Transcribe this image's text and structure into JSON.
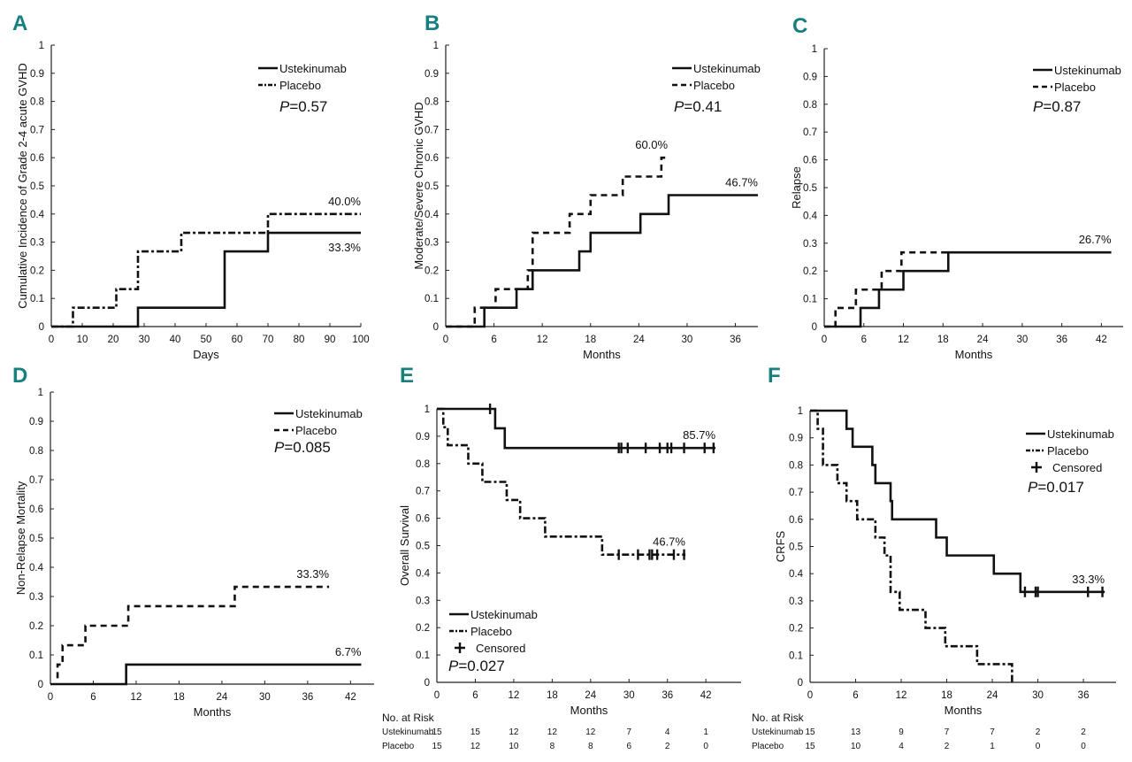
{
  "chart_data": [
    {
      "id": "A",
      "type": "line",
      "panel_label": "A",
      "ylabel": "Cumulative Incidence of Grade 2-4 acute GVHD",
      "xlabel": "Days",
      "xlim": [
        0,
        100
      ],
      "ylim": [
        0,
        1
      ],
      "xticks": [
        0,
        10,
        20,
        30,
        40,
        50,
        60,
        70,
        80,
        90,
        100
      ],
      "yticks": [
        0,
        0.1,
        0.2,
        0.3,
        0.4,
        0.5,
        0.6,
        0.7,
        0.8,
        0.9,
        1
      ],
      "legend": [
        "Ustekinumab",
        "Placebo"
      ],
      "legend_position": "top-right",
      "p_value": "=0.57",
      "series": [
        {
          "name": "Ustekinumab",
          "style": "solid",
          "step": true,
          "start": 0,
          "x": [
            0,
            28,
            56,
            70,
            100
          ],
          "y": [
            0,
            0.067,
            0.267,
            0.333,
            0.333
          ],
          "end_label": "33.3%",
          "label_pos": "below"
        },
        {
          "name": "Placebo",
          "style": "dashdot",
          "step": true,
          "start": 0,
          "x": [
            0,
            7,
            21,
            28,
            42,
            70,
            100
          ],
          "y": [
            0,
            0.067,
            0.133,
            0.267,
            0.333,
            0.4,
            0.4
          ],
          "end_label": "40.0%",
          "label_pos": "above"
        }
      ]
    },
    {
      "id": "B",
      "type": "line",
      "panel_label": "B",
      "ylabel": "Moderate/Severe Chronic GVHD",
      "xlabel": "Months",
      "xlim": [
        0,
        38.8
      ],
      "ylim": [
        0,
        1
      ],
      "xticks": [
        0,
        6,
        12,
        18,
        24,
        30,
        36
      ],
      "yticks": [
        0,
        0.1,
        0.2,
        0.3,
        0.4,
        0.5,
        0.6,
        0.7,
        0.8,
        0.9,
        1
      ],
      "legend": [
        "Ustekinumab",
        "Placebo"
      ],
      "legend_position": "top-right",
      "p_value": "=0.41",
      "series": [
        {
          "name": "Ustekinumab",
          "style": "solid",
          "step": true,
          "x": [
            0,
            4.8,
            8.8,
            10.8,
            16.6,
            18,
            24.2,
            27.7,
            38.8
          ],
          "y": [
            0,
            0.067,
            0.133,
            0.2,
            0.267,
            0.333,
            0.4,
            0.467,
            0.467
          ],
          "end_label": "46.7%",
          "label_pos": "above"
        },
        {
          "name": "Placebo",
          "style": "dash",
          "step": true,
          "x": [
            0,
            3.6,
            6.2,
            10.2,
            10.8,
            15.4,
            18,
            22,
            26.8,
            27.6
          ],
          "y": [
            0,
            0.067,
            0.133,
            0.2,
            0.333,
            0.4,
            0.467,
            0.533,
            0.6,
            0.6
          ],
          "end_label": "60.0%",
          "label_pos": "above"
        }
      ]
    },
    {
      "id": "C",
      "type": "line",
      "panel_label": "C",
      "ylabel": "Relapse",
      "xlabel": "Months",
      "xlim": [
        0,
        45.3
      ],
      "ylim": [
        0,
        1
      ],
      "xticks": [
        0,
        6,
        12,
        18,
        24,
        30,
        36,
        42
      ],
      "yticks": [
        0,
        0.1,
        0.2,
        0.3,
        0.4,
        0.5,
        0.6,
        0.7,
        0.8,
        0.9,
        1
      ],
      "legend": [
        "Ustekinumab",
        "Placebo"
      ],
      "legend_position": "top-right",
      "p_value": "=0.87",
      "series": [
        {
          "name": "Ustekinumab",
          "style": "solid",
          "step": true,
          "x": [
            0,
            5.5,
            8.3,
            12,
            18.8,
            43.5
          ],
          "y": [
            0,
            0.067,
            0.133,
            0.2,
            0.267,
            0.267
          ],
          "end_label": "26.7%",
          "label_pos": "above"
        },
        {
          "name": "Placebo",
          "style": "dash",
          "step": true,
          "x": [
            0,
            1.7,
            4.8,
            8.7,
            11.7,
            18.8
          ],
          "y": [
            0,
            0.067,
            0.133,
            0.2,
            0.267,
            0.267
          ],
          "end_label": "",
          "label_pos": "above"
        }
      ]
    },
    {
      "id": "D",
      "type": "line",
      "panel_label": "D",
      "ylabel": "Non-Relapse Mortality",
      "xlabel": "Months",
      "xlim": [
        0,
        45.3
      ],
      "ylim": [
        0,
        1
      ],
      "xticks": [
        0,
        6,
        12,
        18,
        24,
        30,
        36,
        42
      ],
      "yticks": [
        0,
        0.1,
        0.2,
        0.3,
        0.4,
        0.5,
        0.6,
        0.7,
        0.8,
        0.9,
        1
      ],
      "legend": [
        "Ustekinumab",
        "Placebo"
      ],
      "legend_position": "top-right",
      "p_value": "=0.085",
      "series": [
        {
          "name": "Ustekinumab",
          "style": "solid",
          "step": true,
          "x": [
            0,
            10.6,
            43.5
          ],
          "y": [
            0,
            0.067,
            0.067
          ],
          "end_label": "6.7%",
          "label_pos": "above"
        },
        {
          "name": "Placebo",
          "style": "dash",
          "step": true,
          "x": [
            1,
            1.7,
            4.9,
            10.9,
            25.8,
            39
          ],
          "y": [
            0.067,
            0.133,
            0.2,
            0.267,
            0.333,
            0.333
          ],
          "start_y": 0.02,
          "end_label": "33.3%",
          "label_pos": "above"
        }
      ]
    },
    {
      "id": "E",
      "type": "line",
      "panel_label": "E",
      "ylabel": "Overall Survival",
      "xlabel": "Months",
      "xlim": [
        0,
        47.5
      ],
      "ylim": [
        0,
        1
      ],
      "xticks": [
        0,
        6,
        12,
        18,
        24,
        30,
        36,
        42
      ],
      "yticks": [
        0,
        0.1,
        0.2,
        0.3,
        0.4,
        0.5,
        0.6,
        0.7,
        0.8,
        0.9,
        1
      ],
      "legend": [
        "Ustekinumab",
        "Placebo",
        "Censored"
      ],
      "legend_position": "bottom-left",
      "p_value": "=0.027",
      "series": [
        {
          "name": "Ustekinumab",
          "style": "solid",
          "step": true,
          "x": [
            0,
            9.1,
            10.6,
            43.5
          ],
          "y": [
            1,
            0.929,
            0.857,
            0.857
          ],
          "censored": [
            8.3,
            28.4,
            28.8,
            29.8,
            32.6,
            34.8,
            36,
            36.6,
            38.6,
            41.8,
            43.2
          ],
          "end_label": "85.7%",
          "label_pos": "above"
        },
        {
          "name": "Placebo",
          "style": "dashdot",
          "step": true,
          "x": [
            0,
            1,
            1.7,
            4.9,
            7.1,
            10.9,
            13,
            16.9,
            25.8,
            38.8
          ],
          "y": [
            1,
            0.933,
            0.867,
            0.8,
            0.733,
            0.667,
            0.6,
            0.533,
            0.467,
            0.467
          ],
          "censored": [
            28.4,
            31.4,
            33.2,
            33.6,
            34.4,
            37,
            38.6
          ],
          "end_label": "46.7%",
          "label_pos": "above"
        }
      ],
      "risk_table": {
        "title": "No. at Risk",
        "times": [
          0,
          6,
          12,
          18,
          24,
          30,
          36,
          42
        ],
        "rows": [
          {
            "name": "Ustekinumab",
            "values": [
              15,
              15,
              12,
              12,
              12,
              7,
              4,
              1
            ]
          },
          {
            "name": "Placebo",
            "values": [
              15,
              12,
              10,
              8,
              8,
              6,
              2,
              0
            ]
          }
        ]
      }
    },
    {
      "id": "F",
      "type": "line",
      "panel_label": "F",
      "ylabel": "CRFS",
      "xlabel": "Months",
      "xlim": [
        0,
        40.3
      ],
      "ylim": [
        0,
        1
      ],
      "xticks": [
        0,
        6,
        12,
        18,
        24,
        30,
        36
      ],
      "yticks": [
        0,
        0.1,
        0.2,
        0.3,
        0.4,
        0.5,
        0.6,
        0.7,
        0.8,
        0.9,
        1
      ],
      "legend": [
        "Ustekinumab",
        "Placebo",
        "Censored"
      ],
      "legend_position": "top-right",
      "p_value": "=0.017",
      "series": [
        {
          "name": "Ustekinumab",
          "style": "solid",
          "step": true,
          "x": [
            0,
            4.8,
            5.6,
            8.2,
            8.6,
            10.6,
            10.8,
            16.6,
            18,
            24.2,
            27.7,
            38.8
          ],
          "y": [
            1,
            0.933,
            0.867,
            0.8,
            0.733,
            0.667,
            0.6,
            0.533,
            0.467,
            0.4,
            0.333,
            0.333
          ],
          "censored": [
            28.3,
            29.7,
            30,
            36.6,
            38.5
          ],
          "end_label": "33.3%",
          "label_pos": "above"
        },
        {
          "name": "Placebo",
          "style": "dashdot",
          "step": true,
          "x": [
            0,
            1,
            1.7,
            3.6,
            4.8,
            6.2,
            8.6,
            9.8,
            10.6,
            11.8,
            15.2,
            17.8,
            22,
            26.6
          ],
          "y": [
            1,
            0.933,
            0.8,
            0.733,
            0.667,
            0.6,
            0.533,
            0.467,
            0.333,
            0.267,
            0.2,
            0.133,
            0.067,
            0
          ],
          "censored": [],
          "end_label": "",
          "label_pos": "above"
        }
      ],
      "risk_table": {
        "title": "No. at Risk",
        "times": [
          0,
          6,
          12,
          18,
          24,
          30,
          36
        ],
        "rows": [
          {
            "name": "Ustekinumab",
            "values": [
              15,
              13,
              9,
              7,
              7,
              2,
              2
            ]
          },
          {
            "name": "Placebo",
            "values": [
              15,
              10,
              4,
              2,
              1,
              0,
              0
            ]
          }
        ]
      }
    }
  ],
  "colors": {
    "panel_label": "#17807f",
    "line": "#111111"
  }
}
